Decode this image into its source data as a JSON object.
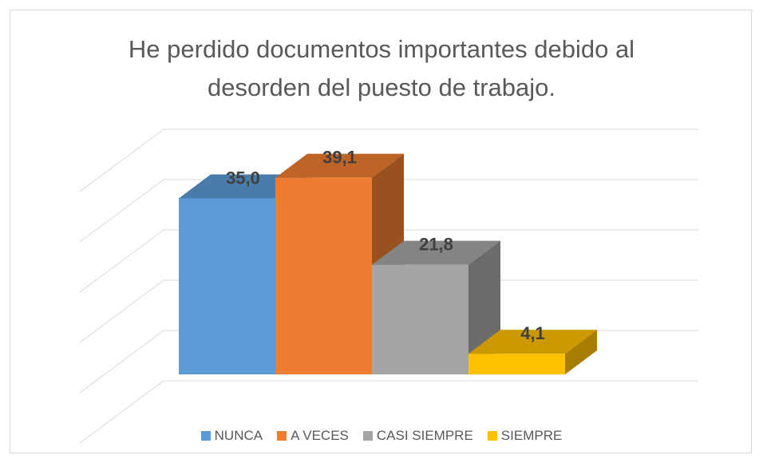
{
  "chart_data": {
    "type": "bar3d",
    "title": "He perdido documentos importantes debido al desorden del puesto de trabajo.",
    "series": [
      {
        "name": "NUNCA",
        "color": "#5b9bd5",
        "values": [
          35.0
        ],
        "value_labels": [
          "35,0"
        ]
      },
      {
        "name": "A VECES",
        "color": "#ed7d31",
        "values": [
          39.1
        ],
        "value_labels": [
          "39,1"
        ]
      },
      {
        "name": "CASI SIEMPRE",
        "color": "#a5a5a5",
        "values": [
          21.8
        ],
        "value_labels": [
          "21,8"
        ]
      },
      {
        "name": "SIEMPRE",
        "color": "#ffc000",
        "values": [
          4.1
        ],
        "value_labels": [
          "4,1"
        ]
      }
    ],
    "ylim": [
      0,
      50
    ],
    "yticks": [
      0,
      10,
      20,
      30,
      40,
      50
    ],
    "grid": true,
    "legend": "bottom"
  }
}
